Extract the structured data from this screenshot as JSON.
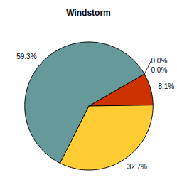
{
  "chart_data": {
    "type": "pie",
    "title": "Windstorm",
    "values": [
      0.0,
      0.0,
      8.1,
      32.7,
      59.3
    ],
    "value_labels": [
      "0.0%",
      "0.0%",
      "8.1%",
      "32.7%",
      "59.3%"
    ],
    "colors": [
      "#cc3300",
      "#cc3300",
      "#cc3300",
      "#ffcc33",
      "#669999"
    ],
    "data_labels": true
  }
}
